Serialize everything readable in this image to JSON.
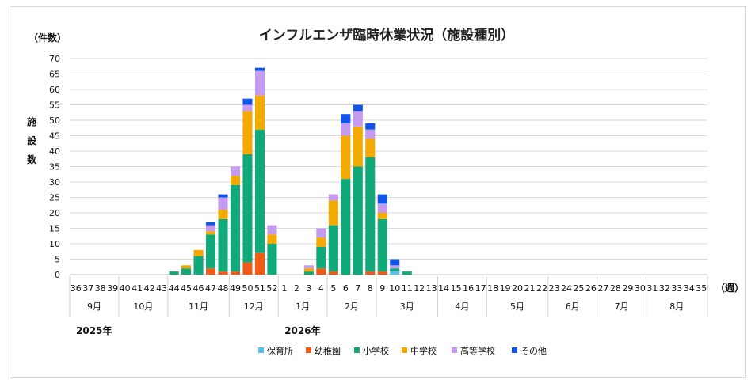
{
  "chart_data": {
    "type": "bar",
    "stacked": true,
    "title": "インフルエンザ臨時休業状況（施設種別）",
    "y_unit": "（件数）",
    "ylabel": [
      "施",
      "設",
      "数"
    ],
    "x_unit": "（週）",
    "ylim": [
      0,
      70
    ],
    "y_ticks": [
      0,
      5,
      10,
      15,
      20,
      25,
      30,
      35,
      40,
      45,
      50,
      55,
      60,
      65,
      70
    ],
    "grid": true,
    "legend_position": "bottom",
    "categories": [
      "36",
      "37",
      "38",
      "39",
      "40",
      "41",
      "42",
      "43",
      "44",
      "45",
      "46",
      "47",
      "48",
      "49",
      "50",
      "51",
      "52",
      "1",
      "2",
      "3",
      "4",
      "5",
      "6",
      "7",
      "8",
      "9",
      "10",
      "11",
      "12",
      "13",
      "14",
      "15",
      "16",
      "17",
      "18",
      "19",
      "20",
      "21",
      "22",
      "23",
      "24",
      "25",
      "26",
      "27",
      "28",
      "29",
      "30",
      "31",
      "32",
      "33",
      "34",
      "35"
    ],
    "months": [
      {
        "label": "9月",
        "start": 0,
        "count": 4
      },
      {
        "label": "10月",
        "start": 4,
        "count": 4
      },
      {
        "label": "11月",
        "start": 8,
        "count": 5
      },
      {
        "label": "12月",
        "start": 13,
        "count": 4
      },
      {
        "label": "1月",
        "start": 17,
        "count": 4
      },
      {
        "label": "2月",
        "start": 21,
        "count": 4
      },
      {
        "label": "3月",
        "start": 25,
        "count": 5
      },
      {
        "label": "4月",
        "start": 30,
        "count": 4
      },
      {
        "label": "5月",
        "start": 34,
        "count": 5
      },
      {
        "label": "6月",
        "start": 39,
        "count": 4
      },
      {
        "label": "7月",
        "start": 43,
        "count": 4
      },
      {
        "label": "8月",
        "start": 47,
        "count": 5
      }
    ],
    "years": [
      {
        "label": "2025年",
        "at_index": 0
      },
      {
        "label": "2026年",
        "at_index": 17
      }
    ],
    "series": [
      {
        "name": "保育所",
        "color": "#5bc0eb",
        "values": [
          0,
          0,
          0,
          0,
          0,
          0,
          0,
          0,
          0,
          0,
          0,
          0,
          0,
          0,
          0,
          0,
          0,
          0,
          0,
          0,
          0,
          0,
          0,
          0,
          0,
          0,
          1,
          0,
          0,
          0,
          0,
          0,
          0,
          0,
          0,
          0,
          0,
          0,
          0,
          0,
          0,
          0,
          0,
          0,
          0,
          0,
          0,
          0,
          0,
          0,
          0,
          0
        ]
      },
      {
        "name": "幼稚園",
        "color": "#f05a14",
        "values": [
          0,
          0,
          0,
          0,
          0,
          0,
          0,
          0,
          0,
          0,
          0,
          2,
          1,
          1,
          4,
          7,
          0,
          0,
          0,
          0,
          2,
          1,
          0,
          0,
          1,
          1,
          0,
          0,
          0,
          0,
          0,
          0,
          0,
          0,
          0,
          0,
          0,
          0,
          0,
          0,
          0,
          0,
          0,
          0,
          0,
          0,
          0,
          0,
          0,
          0,
          0,
          0
        ]
      },
      {
        "name": "小学校",
        "color": "#11a87a",
        "values": [
          0,
          0,
          0,
          0,
          0,
          0,
          0,
          0,
          1,
          2,
          6,
          11,
          17,
          28,
          35,
          40,
          10,
          0,
          0,
          1,
          7,
          15,
          31,
          35,
          37,
          17,
          1,
          1,
          0,
          0,
          0,
          0,
          0,
          0,
          0,
          0,
          0,
          0,
          0,
          0,
          0,
          0,
          0,
          0,
          0,
          0,
          0,
          0,
          0,
          0,
          0,
          0
        ]
      },
      {
        "name": "中学校",
        "color": "#f2a900",
        "values": [
          0,
          0,
          0,
          0,
          0,
          0,
          0,
          0,
          0,
          1,
          2,
          1,
          3,
          3,
          14,
          11,
          3,
          0,
          0,
          1,
          3,
          8,
          14,
          13,
          6,
          2,
          0,
          0,
          0,
          0,
          0,
          0,
          0,
          0,
          0,
          0,
          0,
          0,
          0,
          0,
          0,
          0,
          0,
          0,
          0,
          0,
          0,
          0,
          0,
          0,
          0,
          0
        ]
      },
      {
        "name": "高等学校",
        "color": "#c59bf0",
        "values": [
          0,
          0,
          0,
          0,
          0,
          0,
          0,
          0,
          0,
          0,
          0,
          2,
          4,
          3,
          2,
          8,
          3,
          0,
          0,
          1,
          3,
          2,
          4,
          5,
          3,
          3,
          1,
          0,
          0,
          0,
          0,
          0,
          0,
          0,
          0,
          0,
          0,
          0,
          0,
          0,
          0,
          0,
          0,
          0,
          0,
          0,
          0,
          0,
          0,
          0,
          0,
          0
        ]
      },
      {
        "name": "その他",
        "color": "#1155e6",
        "values": [
          0,
          0,
          0,
          0,
          0,
          0,
          0,
          0,
          0,
          0,
          0,
          1,
          1,
          0,
          2,
          1,
          0,
          0,
          0,
          0,
          0,
          0,
          3,
          2,
          2,
          3,
          2,
          0,
          0,
          0,
          0,
          0,
          0,
          0,
          0,
          0,
          0,
          0,
          0,
          0,
          0,
          0,
          0,
          0,
          0,
          0,
          0,
          0,
          0,
          0,
          0,
          0
        ]
      }
    ]
  }
}
